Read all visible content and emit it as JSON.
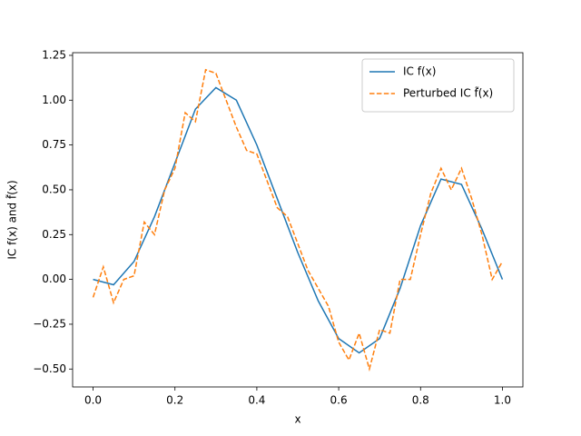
{
  "chart_data": {
    "type": "line",
    "xlabel": "x",
    "ylabel": "IC f(x) and f̃(x)",
    "xlim": [
      -0.05,
      1.05
    ],
    "ylim": [
      -0.6,
      1.265
    ],
    "xticks": [
      {
        "value": 0,
        "label": "0.0"
      },
      {
        "value": 0.2,
        "label": "0.2"
      },
      {
        "value": 0.4,
        "label": "0.4"
      },
      {
        "value": 0.6,
        "label": "0.6"
      },
      {
        "value": 0.8,
        "label": "0.8"
      },
      {
        "value": 1,
        "label": "1.0"
      }
    ],
    "yticks": [
      {
        "value": -0.5,
        "label": "−0.50"
      },
      {
        "value": -0.25,
        "label": "−0.25"
      },
      {
        "value": 0,
        "label": "0.00"
      },
      {
        "value": 0.25,
        "label": "0.25"
      },
      {
        "value": 0.5,
        "label": "0.50"
      },
      {
        "value": 0.75,
        "label": "0.75"
      },
      {
        "value": 1,
        "label": "1.00"
      },
      {
        "value": 1.25,
        "label": "1.25"
      }
    ],
    "legend": "upper right",
    "series": [
      {
        "name": "IC f(x)",
        "color": "#1f77b4",
        "linestyle": "solid",
        "x": [
          0,
          0.05,
          0.1,
          0.15,
          0.2,
          0.25,
          0.3,
          0.35,
          0.4,
          0.45,
          0.5,
          0.55,
          0.6,
          0.65,
          0.7,
          0.75,
          0.8,
          0.85,
          0.9,
          0.95,
          1.0
        ],
        "values": [
          0,
          -0.03,
          0.1,
          0.35,
          0.65,
          0.95,
          1.07,
          1.0,
          0.75,
          0.45,
          0.15,
          -0.12,
          -0.33,
          -0.41,
          -0.33,
          -0.05,
          0.3,
          0.56,
          0.53,
          0.28,
          0
        ]
      },
      {
        "name": "Perturbed IC f̃(x)",
        "color": "#ff7f0e",
        "linestyle": "dashed",
        "x": [
          0,
          0.025,
          0.05,
          0.075,
          0.1,
          0.125,
          0.15,
          0.175,
          0.2,
          0.225,
          0.25,
          0.275,
          0.3,
          0.325,
          0.35,
          0.375,
          0.4,
          0.425,
          0.45,
          0.475,
          0.5,
          0.525,
          0.55,
          0.575,
          0.6,
          0.625,
          0.65,
          0.675,
          0.7,
          0.725,
          0.75,
          0.775,
          0.8,
          0.825,
          0.85,
          0.875,
          0.9,
          0.925,
          0.95,
          0.975,
          1.0
        ],
        "values": [
          -0.1,
          0.07,
          -0.13,
          0,
          0.02,
          0.32,
          0.25,
          0.5,
          0.62,
          0.93,
          0.88,
          1.17,
          1.15,
          1.0,
          0.85,
          0.72,
          0.7,
          0.55,
          0.4,
          0.35,
          0.2,
          0.05,
          -0.05,
          -0.15,
          -0.35,
          -0.45,
          -0.3,
          -0.5,
          -0.28,
          -0.3,
          0,
          0,
          0.25,
          0.48,
          0.62,
          0.5,
          0.62,
          0.45,
          0.25,
          0,
          0.1
        ]
      }
    ]
  }
}
